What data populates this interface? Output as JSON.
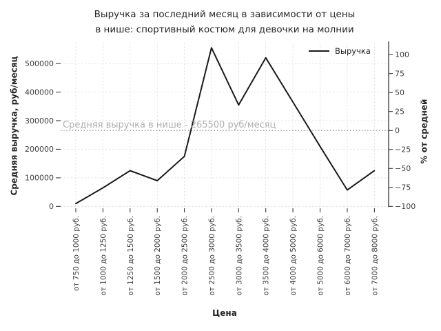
{
  "chart_data": {
    "type": "line",
    "title_line1": "Выручка за последний месяц в зависимости от цены",
    "title_line2": "в нише: спортивный костюм для девочки на молнии",
    "xlabel": "Цена",
    "ylabel_left": "Средняя выручка, руб/месяц",
    "ylabel_right": "% от средней",
    "legend": [
      {
        "label": "Выручка",
        "color": "#1a1a1a"
      }
    ],
    "legend_position": "upper right",
    "categories": [
      "от 750 до 1000 руб.",
      "от 1000 до 1250 руб.",
      "от 1250 до 1500 руб.",
      "от 1500 до 2000 руб.",
      "от 2000 до 2500 руб.",
      "от 2500 до 3000 руб.",
      "от 3000 до 3500 руб.",
      "от 3500 до 4000 руб.",
      "от 4000 до 5000 руб.",
      "от 5000 до 6000 руб.",
      "от 6000 до 7000 руб.",
      "от 7000 до 8000 руб."
    ],
    "series": [
      {
        "name": "Выручка",
        "values": [
          10000,
          65000,
          125000,
          90000,
          175000,
          555000,
          355000,
          520000,
          365000,
          210000,
          57500,
          125000
        ]
      }
    ],
    "mean_line": {
      "value": 265500,
      "annotation": "Средняя выручка в нише - 265500 руб/месяц"
    },
    "axes": {
      "grid": true,
      "left_ticks": [
        {
          "value": 0,
          "label": "0"
        },
        {
          "value": 100000,
          "label": "100000"
        },
        {
          "value": 200000,
          "label": "200000"
        },
        {
          "value": 300000,
          "label": "300000"
        },
        {
          "value": 400000,
          "label": "400000"
        },
        {
          "value": 500000,
          "label": "500000"
        }
      ],
      "right_ticks": [
        {
          "value": 100,
          "label": "100"
        },
        {
          "value": 75,
          "label": "75"
        },
        {
          "value": 50,
          "label": "50"
        },
        {
          "value": 25,
          "label": "25"
        },
        {
          "value": 0,
          "label": "0"
        },
        {
          "value": -25,
          "label": "−25"
        },
        {
          "value": -50,
          "label": "−50"
        },
        {
          "value": -75,
          "label": "−75"
        },
        {
          "value": -100,
          "label": "−100"
        }
      ],
      "ylim_left": [
        -6500,
        572500
      ],
      "ylim_right": [
        -102.4,
        115.6
      ]
    },
    "colors": {
      "line": "#1a1a1a",
      "grid": "#dcdcdc",
      "mean_line": "#9b9b9b",
      "annotation_text": "#aeaeae",
      "tick_text": "#3d3d3d",
      "title_text": "#262626",
      "background": "#ffffff"
    }
  }
}
